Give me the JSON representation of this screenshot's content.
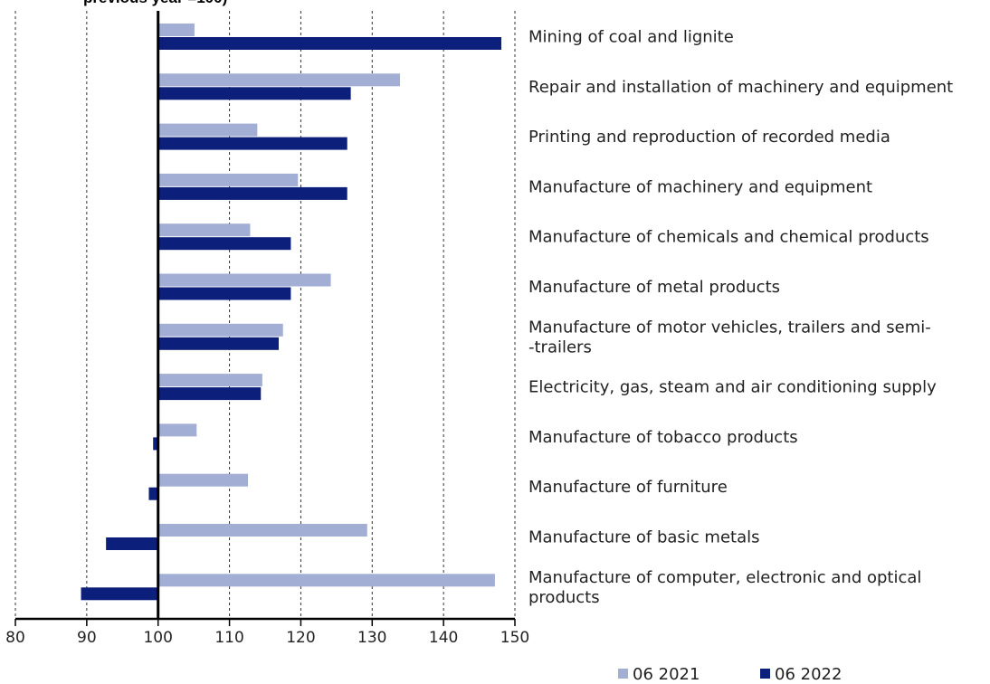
{
  "chart_data": {
    "type": "bar",
    "orientation": "horizontal",
    "title": "previous year =100)",
    "categories": [
      "Mining of coal and lignite",
      "Repair and installation of machinery and equipment",
      "Printing and reproduction of recorded media",
      "Manufacture of machinery and equipment",
      "Manufacture of chemicals and chemical products",
      "Manufacture of metal products",
      "Manufacture of motor vehicles, trailers and semi-|-trailers",
      "Electricity, gas, steam and air conditioning supply",
      "Manufacture of tobacco products",
      "Manufacture of furniture",
      "Manufacture of basic metals",
      "Manufacture of computer, electronic and optical|products"
    ],
    "series": [
      {
        "name": "06 2021",
        "color": "#a2aed3",
        "values": [
          105.1,
          133.9,
          113.9,
          119.6,
          112.9,
          124.2,
          117.5,
          114.6,
          105.4,
          112.6,
          129.3,
          147.2
        ]
      },
      {
        "name": "06 2022",
        "color": "#0c1f7a",
        "values": [
          148.1,
          127.0,
          126.5,
          126.5,
          118.6,
          118.6,
          116.9,
          114.4,
          99.3,
          98.7,
          92.7,
          89.2
        ]
      }
    ],
    "baseline": 100,
    "xlim": [
      80,
      150
    ],
    "xticks": [
      80,
      90,
      100,
      110,
      120,
      130,
      140,
      150
    ],
    "grid": "vertical dashed",
    "legend_position": "bottom-right"
  }
}
